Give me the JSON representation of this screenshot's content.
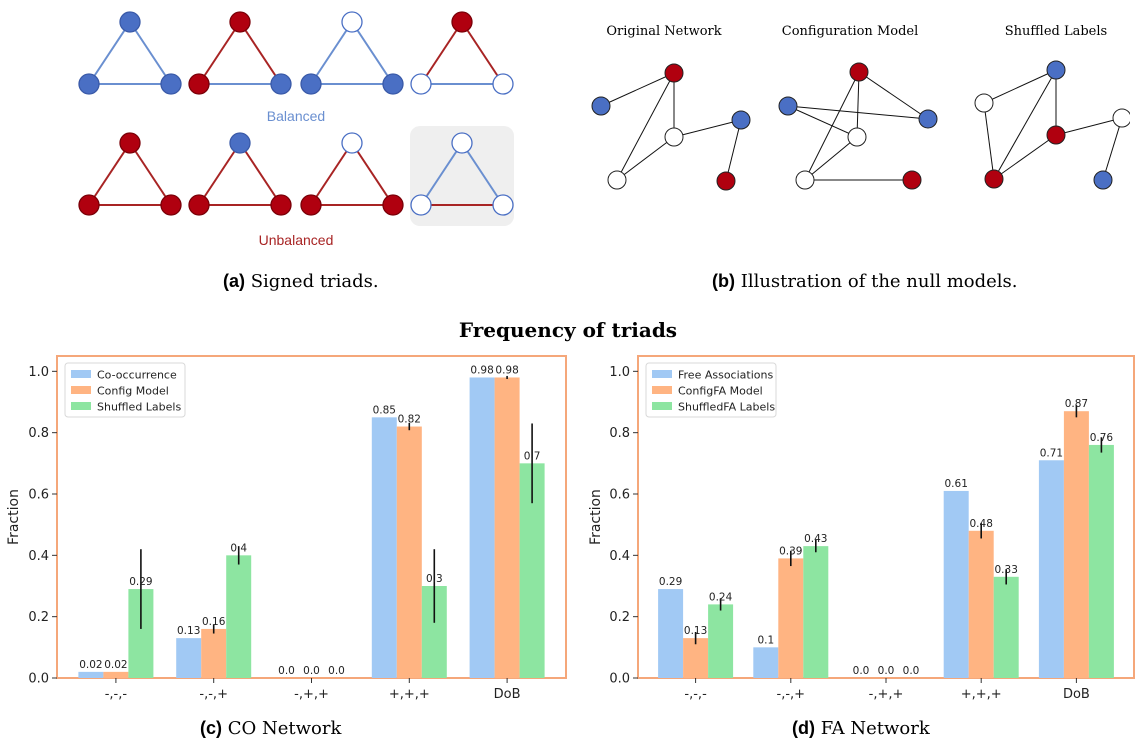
{
  "panel_a": {
    "caption_tag": "(a)",
    "caption_text": " Signed triads.",
    "balanced_label": "Balanced",
    "unbalanced_label": "Unbalanced",
    "colors": {
      "blue": "#4a6fc4",
      "red": "#b0000f",
      "edge_blue": "#6a8fd0",
      "edge_red": "#a82424",
      "highlight_bg": "#efefef"
    }
  },
  "panel_b": {
    "caption_tag": "(b)",
    "caption_text": " Illustration of the null models.",
    "titles": [
      "Original Network",
      "Configuration Model",
      "Shuffled Labels"
    ]
  },
  "main_title": "Frequency of triads",
  "chart_data": [
    {
      "type": "bar",
      "caption_tag": "(c)",
      "caption_text": " CO Network",
      "categories": [
        "-,-,-",
        "-,-,+",
        "-,+,+",
        "+,+,+",
        "DoB"
      ],
      "ylabel": "Fraction",
      "ylim": [
        0,
        1.05
      ],
      "yticks": [
        "0.0",
        "0.2",
        "0.4",
        "0.6",
        "0.8",
        "1.0"
      ],
      "legend_position": "top-left",
      "series": [
        {
          "name": "Co-occurrence",
          "color": "#a1c9f4",
          "values": [
            0.02,
            0.13,
            0.0,
            0.85,
            0.98
          ],
          "labels": [
            "0.02",
            "0.13",
            "0.0",
            "0.85",
            "0.98"
          ],
          "err": [
            0,
            0,
            0,
            0,
            0
          ]
        },
        {
          "name": "Config Model",
          "color": "#ffb482",
          "values": [
            0.02,
            0.16,
            0.0,
            0.82,
            0.98
          ],
          "labels": [
            "0.02",
            "0.16",
            "0.0",
            "0.82",
            "0.98"
          ],
          "err": [
            0,
            0.015,
            0,
            0.012,
            0.005
          ]
        },
        {
          "name": "Shuffled Labels",
          "color": "#8de5a1",
          "values": [
            0.29,
            0.4,
            0.0,
            0.3,
            0.7
          ],
          "labels": [
            "0.29",
            "0.4",
            "0.0",
            "0.3",
            "0.7"
          ],
          "err": [
            0.13,
            0.03,
            0,
            0.12,
            0.13
          ]
        }
      ]
    },
    {
      "type": "bar",
      "caption_tag": "(d)",
      "caption_text": " FA Network",
      "categories": [
        "-,-,-",
        "-,-,+",
        "-,+,+",
        "+,+,+",
        "DoB"
      ],
      "ylabel": "Fraction",
      "ylim": [
        0,
        1.05
      ],
      "yticks": [
        "0.0",
        "0.2",
        "0.4",
        "0.6",
        "0.8",
        "1.0"
      ],
      "legend_position": "top-left",
      "series": [
        {
          "name": "Free Associations",
          "color": "#a1c9f4",
          "values": [
            0.29,
            0.1,
            0.0,
            0.61,
            0.71
          ],
          "labels": [
            "0.29",
            "0.1",
            "0.0",
            "0.61",
            "0.71"
          ],
          "err": [
            0,
            0,
            0,
            0,
            0
          ]
        },
        {
          "name": "ConfigFA Model",
          "color": "#ffb482",
          "values": [
            0.13,
            0.39,
            0.0,
            0.48,
            0.87
          ],
          "labels": [
            "0.13",
            "0.39",
            "0.0",
            "0.48",
            "0.87"
          ],
          "err": [
            0.02,
            0.025,
            0,
            0.025,
            0.02
          ]
        },
        {
          "name": "ShuffledFA Labels",
          "color": "#8de5a1",
          "values": [
            0.24,
            0.43,
            0.0,
            0.33,
            0.76
          ],
          "labels": [
            "0.24",
            "0.43",
            "0.0",
            "0.33",
            "0.76"
          ],
          "err": [
            0.02,
            0.02,
            0,
            0.025,
            0.025
          ]
        }
      ]
    }
  ]
}
